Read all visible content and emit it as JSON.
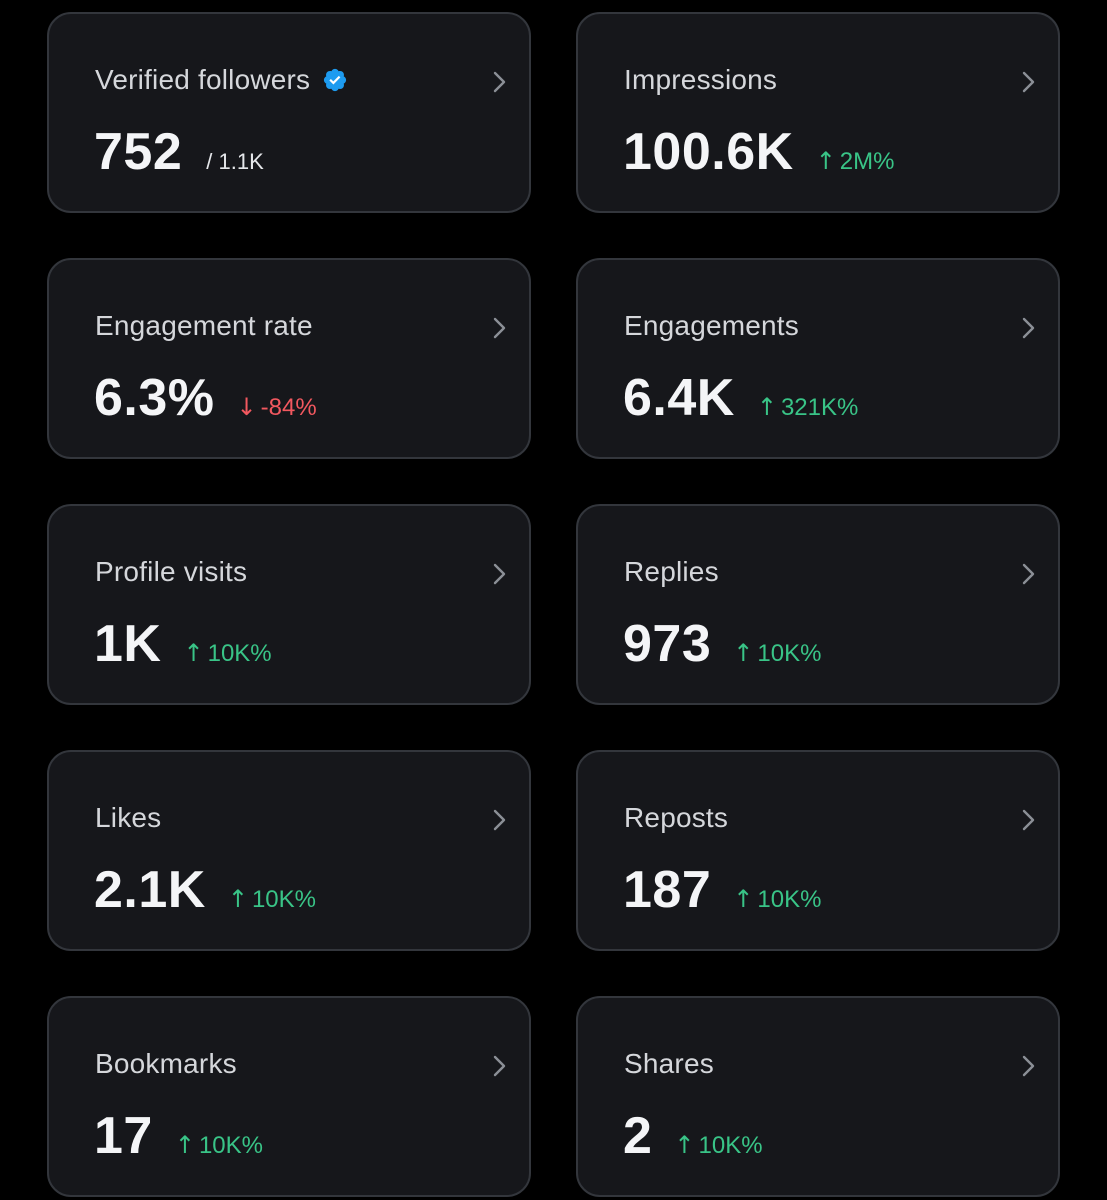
{
  "colors": {
    "background": "#000000",
    "card": "#16171b",
    "border": "#33363c",
    "positive": "#39c487",
    "negative": "#f2585f",
    "verified_badge": "#1d9bf0"
  },
  "cards": [
    {
      "title": "Verified followers",
      "value": "752",
      "total": "/ 1.1K",
      "badge_icon": "verified-badge-icon"
    },
    {
      "title": "Impressions",
      "value": "100.6K",
      "arrow": "↑",
      "change": "2M%",
      "trend": "up"
    },
    {
      "title": "Engagement rate",
      "value": "6.3%",
      "arrow": "↓",
      "change": "-84%",
      "trend": "down"
    },
    {
      "title": "Engagements",
      "value": "6.4K",
      "arrow": "↑",
      "change": "321K%",
      "trend": "up"
    },
    {
      "title": "Profile visits",
      "value": "1K",
      "arrow": "↑",
      "change": "10K%",
      "trend": "up"
    },
    {
      "title": "Replies",
      "value": "973",
      "arrow": "↑",
      "change": "10K%",
      "trend": "up"
    },
    {
      "title": "Likes",
      "value": "2.1K",
      "arrow": "↑",
      "change": "10K%",
      "trend": "up"
    },
    {
      "title": "Reposts",
      "value": "187",
      "arrow": "↑",
      "change": "10K%",
      "trend": "up"
    },
    {
      "title": "Bookmarks",
      "value": "17",
      "arrow": "↑",
      "change": "10K%",
      "trend": "up"
    },
    {
      "title": "Shares",
      "value": "2",
      "arrow": "↑",
      "change": "10K%",
      "trend": "up"
    }
  ]
}
